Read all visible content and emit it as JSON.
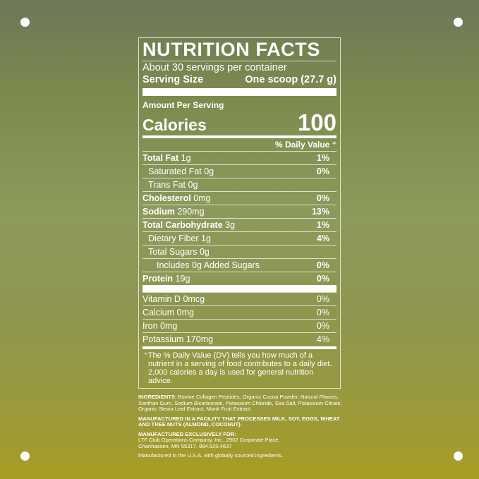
{
  "label": {
    "title": "NUTRITION FACTS",
    "servings": "About 30 servings per container",
    "serving_size_label": "Serving Size",
    "serving_size_value": "One scoop (27.7 g)",
    "amount_per_serving": "Amount Per Serving",
    "calories_label": "Calories",
    "calories_value": "100",
    "daily_value_header": "% Daily Value ⁺",
    "nutrients": [
      {
        "name": "Total Fat",
        "amount": "1g",
        "dv": "1%",
        "bold": true,
        "indent": 0
      },
      {
        "name": "Saturated Fat",
        "amount": "0g",
        "dv": "0%",
        "bold": false,
        "indent": 1
      },
      {
        "name": "Trans Fat",
        "amount": "0g",
        "dv": "",
        "bold": false,
        "indent": 1
      },
      {
        "name": "Cholesterol",
        "amount": "0mg",
        "dv": "0%",
        "bold": true,
        "indent": 0
      },
      {
        "name": "Sodium",
        "amount": "290mg",
        "dv": "13%",
        "bold": true,
        "indent": 0
      },
      {
        "name": "Total Carbohydrate",
        "amount": "3g",
        "dv": "1%",
        "bold": true,
        "indent": 0
      },
      {
        "name": "Dietary Fiber",
        "amount": "1g",
        "dv": "4%",
        "bold": false,
        "indent": 1
      },
      {
        "name": "Total Sugars",
        "amount": "0g",
        "dv": "",
        "bold": false,
        "indent": 1
      },
      {
        "name": "Includes 0g Added Sugars",
        "amount": "",
        "dv": "0%",
        "bold": false,
        "indent": 2
      },
      {
        "name": "Protein",
        "amount": "19g",
        "dv": "0%",
        "bold": true,
        "indent": 0
      }
    ],
    "vitamins": [
      {
        "name": "Vitamin D",
        "amount": "0mcg",
        "dv": "0%"
      },
      {
        "name": "Calcium",
        "amount": "0mg",
        "dv": "0%"
      },
      {
        "name": "Iron",
        "amount": "0mg",
        "dv": "0%"
      },
      {
        "name": "Potassium",
        "amount": "170mg",
        "dv": "4%"
      }
    ],
    "footnote": "⁺The % Daily Value (DV) tells you how much of a nutrient in a serving of food contributes to a daily diet. 2,000 calories a day is used for general nutrition advice."
  },
  "info": {
    "ingredients_label": "INGREDIENTS:",
    "ingredients": " Bovine Collagen Peptides, Organic Cocoa Powder, Natural Flavors, Xanthan Gum, Sodium Bicarbonate, Potassium Chloride, Sea Salt, Potassium Citrate, Organic Stevia Leaf Extract, Monk Fruit Extract.",
    "allergen": "MANUFACTURED IN A FACILITY THAT PROCESSES MILK, SOY, EGGS, WHEAT AND TREE NUTS (ALMOND, COCONUT).",
    "manufacturer_label": "MANUFACTURED EXCLUSIVELY FOR:",
    "manufacturer_line1": "LTF Club Operations Company, Inc., 2902 Corporate Place,",
    "manufacturer_line2": "Chanhassen, MN 55317. 884.520.4637",
    "origin": "Manufactured in the U.S.A. with globally sourced ingredients."
  },
  "colors": {
    "background_top": "#6e7757",
    "background_bottom": "#a89c24",
    "text": "#ffffff"
  }
}
